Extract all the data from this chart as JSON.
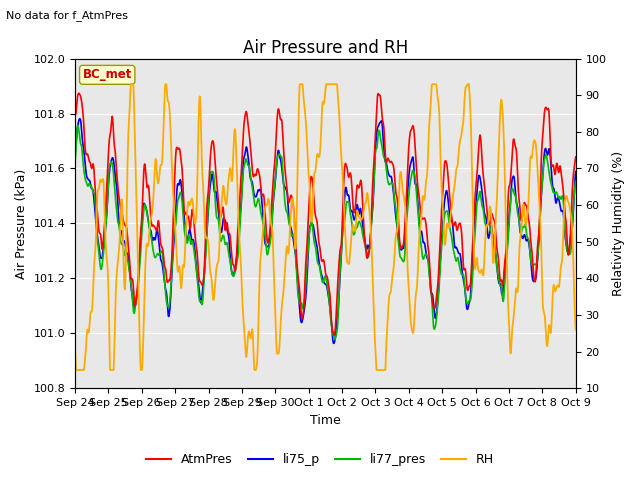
{
  "title": "Air Pressure and RH",
  "subtitle": "No data for f_AtmPres",
  "xlabel": "Time",
  "ylabel_left": "Air Pressure (kPa)",
  "ylabel_right": "Relativity Humidity (%)",
  "annotation": "BC_met",
  "ylim_left": [
    100.8,
    102.0
  ],
  "ylim_right": [
    10,
    100
  ],
  "yticks_left": [
    100.8,
    101.0,
    101.2,
    101.4,
    101.6,
    101.8,
    102.0
  ],
  "yticks_right": [
    10,
    20,
    30,
    40,
    50,
    60,
    70,
    80,
    90,
    100
  ],
  "xtick_labels": [
    "Sep 24",
    "Sep 25",
    "Sep 26",
    "Sep 27",
    "Sep 28",
    "Sep 29",
    "Sep 30",
    "Oct 1",
    "Oct 2",
    "Oct 3",
    "Oct 4",
    "Oct 5",
    "Oct 6",
    "Oct 7",
    "Oct 8",
    "Oct 9"
  ],
  "colors": {
    "AtmPres": "#ff0000",
    "li75_p": "#0000ee",
    "li77_pres": "#00bb00",
    "RH": "#ffaa00"
  },
  "line_widths": {
    "AtmPres": 1.2,
    "li75_p": 1.2,
    "li77_pres": 1.2,
    "RH": 1.3
  },
  "plot_bg_color": "#e8e8e8",
  "grid_color": "#ffffff",
  "title_fontsize": 12,
  "label_fontsize": 9,
  "tick_fontsize": 8
}
